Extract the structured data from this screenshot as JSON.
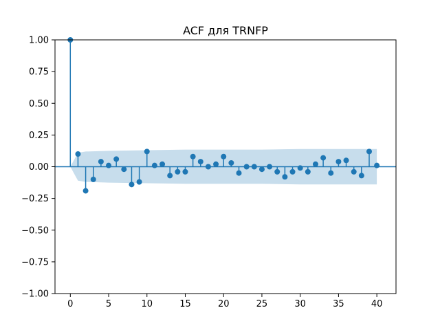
{
  "chart_data": {
    "type": "stem",
    "title": "ACF для TRNFP",
    "xlabel": "",
    "ylabel": "",
    "xlim": [
      -2,
      42.5
    ],
    "ylim": [
      -1.0,
      1.0
    ],
    "x_ticks": [
      0,
      5,
      10,
      15,
      20,
      25,
      30,
      35,
      40
    ],
    "x_tick_labels": [
      "0",
      "5",
      "10",
      "15",
      "20",
      "25",
      "30",
      "35",
      "40"
    ],
    "y_ticks": [
      1.0,
      0.75,
      0.5,
      0.25,
      0.0,
      -0.25,
      -0.5,
      -0.75,
      -1.0
    ],
    "y_tick_labels": [
      "1.00",
      "0.75",
      "0.50",
      "0.25",
      "0.00",
      "−0.25",
      "−0.50",
      "−0.75",
      "−1.00"
    ],
    "grid": false,
    "lags": [
      0,
      1,
      2,
      3,
      4,
      5,
      6,
      7,
      8,
      9,
      10,
      11,
      12,
      13,
      14,
      15,
      16,
      17,
      18,
      19,
      20,
      21,
      22,
      23,
      24,
      25,
      26,
      27,
      28,
      29,
      30,
      31,
      32,
      33,
      34,
      35,
      36,
      37,
      38,
      39,
      40
    ],
    "values": [
      1.0,
      0.1,
      -0.19,
      -0.1,
      0.04,
      0.01,
      0.06,
      -0.02,
      -0.14,
      -0.12,
      0.12,
      0.01,
      0.02,
      -0.07,
      -0.04,
      -0.04,
      0.08,
      0.04,
      0.0,
      0.02,
      0.08,
      0.03,
      -0.05,
      0.0,
      0.0,
      -0.02,
      0.0,
      -0.04,
      -0.08,
      -0.04,
      -0.01,
      -0.04,
      0.02,
      0.07,
      -0.05,
      0.04,
      0.05,
      -0.04,
      -0.07,
      0.12,
      0.01
    ],
    "confidence_band": {
      "lags": [
        0,
        1,
        2,
        5,
        10,
        15,
        20,
        25,
        30,
        35,
        40
      ],
      "upper": [
        0.0,
        0.11,
        0.12,
        0.125,
        0.13,
        0.135,
        0.135,
        0.135,
        0.14,
        0.14,
        0.14
      ],
      "lower": [
        0.0,
        -0.11,
        -0.12,
        -0.125,
        -0.13,
        -0.135,
        -0.135,
        -0.135,
        -0.14,
        -0.14,
        -0.14
      ]
    },
    "colors": {
      "stem": "#1f77b4",
      "band": "#1f77b4",
      "zero_line": "#1f77b4"
    }
  }
}
